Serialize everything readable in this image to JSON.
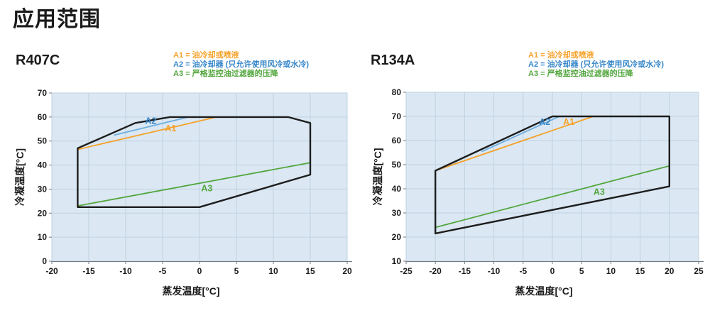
{
  "page_title": "应用范围",
  "colors": {
    "a1": "#F5A22B",
    "a2_line": "#6FADDF",
    "a2_text": "#3787C9",
    "a3": "#52A63E",
    "envelope": "#1d1d1d",
    "plot_bg": "#DBE8F3",
    "grid": "#BFD1E0",
    "axis": "#707A85",
    "tick_text": "#1b1b1b"
  },
  "legend": [
    {
      "id": "A1",
      "label": "A1 = 油冷却或喷液",
      "color_key": "a1"
    },
    {
      "id": "A2",
      "label": "A2 = 油冷却器 (只允许使用风冷或水冷)",
      "color_key": "a2_text"
    },
    {
      "id": "A3",
      "label": "A3 = 严格监控油过滤器的压降",
      "color_key": "a3"
    }
  ],
  "chart_data": [
    {
      "type": "line",
      "name": "R407C",
      "xlabel": "蒸发温度[°C]",
      "ylabel": "冷凝温度[°C]",
      "xlim": [
        -20,
        20
      ],
      "xstep": 5,
      "ylim": [
        0,
        70
      ],
      "ystep": 10,
      "grid": true,
      "legend_position": "top-right-outside",
      "envelope": [
        [
          -16.5,
          22.5
        ],
        [
          -16.5,
          47
        ],
        [
          -8.7,
          57.5
        ],
        [
          -4,
          60
        ],
        [
          12,
          60
        ],
        [
          15,
          57.5
        ],
        [
          15,
          36
        ],
        [
          0,
          22.5
        ]
      ],
      "series": [
        {
          "name": "A1",
          "line_color": "a1",
          "text_color": "a1",
          "points": [
            [
              -16.5,
              46.5
            ],
            [
              2.3,
              60
            ]
          ],
          "label_at": [
            -3.9,
            55.0
          ]
        },
        {
          "name": "A2",
          "line_color": "a2_line",
          "text_color": "a2_text",
          "points": [
            [
              -11.5,
              52.5
            ],
            [
              -1.5,
              60
            ]
          ],
          "label_at": [
            -6.6,
            58.2
          ]
        },
        {
          "name": "A3",
          "line_color": "a3",
          "text_color": "a3",
          "points": [
            [
              -16.5,
              23
            ],
            [
              15,
              41
            ]
          ],
          "label_at": [
            1.0,
            30.0
          ]
        }
      ]
    },
    {
      "type": "line",
      "name": "R134A",
      "xlabel": "蒸发温度[°C]",
      "ylabel": "冷凝温度[°C]",
      "xlim": [
        -25,
        25
      ],
      "xstep": 5,
      "ylim": [
        10,
        80
      ],
      "ystep": 10,
      "grid": true,
      "legend_position": "top-right-outside",
      "envelope": [
        [
          -20,
          21.5
        ],
        [
          -20,
          47.5
        ],
        [
          0,
          70
        ],
        [
          20,
          70
        ],
        [
          20,
          41
        ]
      ],
      "series": [
        {
          "name": "A1",
          "line_color": "a1",
          "text_color": "a1",
          "points": [
            [
              -20,
              47.5
            ],
            [
              7,
              70
            ]
          ],
          "label_at": [
            2.8,
            67.5
          ]
        },
        {
          "name": "A2",
          "line_color": "a2_line",
          "text_color": "a2_text",
          "points": [
            [
              -12,
              55.5
            ],
            [
              1.2,
              70
            ]
          ],
          "label_at": [
            -1.3,
            67.5
          ]
        },
        {
          "name": "A3",
          "line_color": "a3",
          "text_color": "a3",
          "points": [
            [
              -20,
              24
            ],
            [
              20,
              49.5
            ]
          ],
          "label_at": [
            8.0,
            38.5
          ]
        }
      ]
    }
  ]
}
